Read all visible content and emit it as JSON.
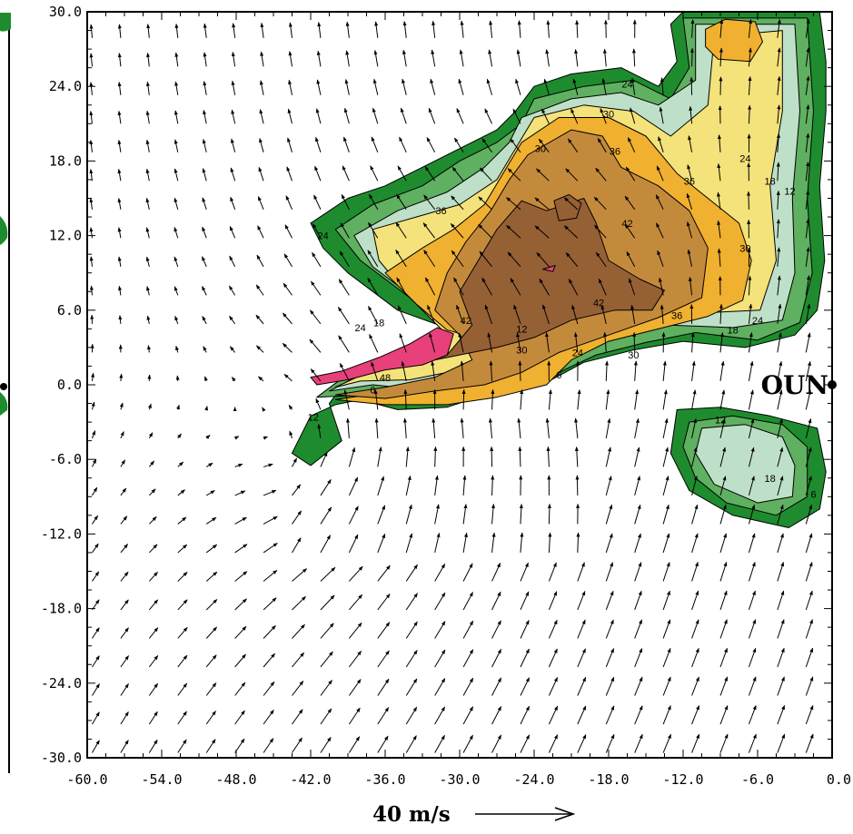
{
  "chart_data": {
    "type": "vector-field with filled contours",
    "title": "",
    "xlabel": "",
    "ylabel": "",
    "xlim": [
      -60,
      0
    ],
    "ylim": [
      -30,
      30
    ],
    "xticks": [
      "-60.0",
      "-54.0",
      "-48.0",
      "-42.0",
      "-36.0",
      "-30.0",
      "-24.0",
      "-18.0",
      "-12.0",
      "-6.0",
      "0.0"
    ],
    "yticks": [
      "30.0",
      "24.0",
      "18.0",
      "12.0",
      "6.0",
      "0.0",
      "-6.0",
      "-12.0",
      "-18.0",
      "-24.0",
      "-30.0"
    ],
    "contour_labels": [
      "6",
      "12",
      "18",
      "24",
      "30",
      "36",
      "42",
      "48"
    ],
    "contour_colors": [
      "#1e8c2e",
      "#5fb060",
      "#bfe0c8",
      "#f4e27a",
      "#f0b030",
      "#c48a3c",
      "#966035",
      "#e8407a"
    ],
    "reference_vector": {
      "speed": 40,
      "label": "40 m/s"
    },
    "station": {
      "name": "OUN",
      "x": 0,
      "y": 0
    },
    "vortex_center": {
      "x": -40,
      "y": -4
    }
  }
}
